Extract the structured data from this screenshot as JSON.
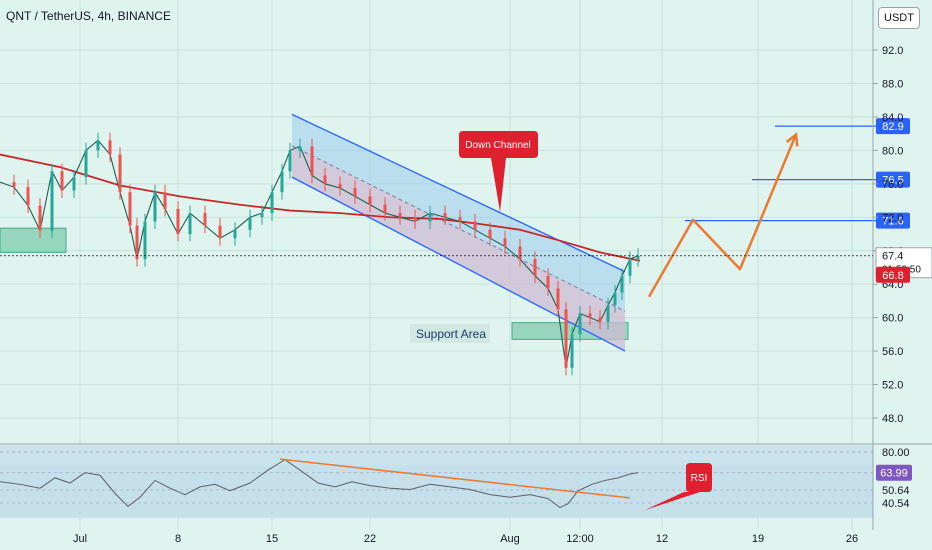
{
  "header": {
    "title": "QNT / TetherUS, 4h, BINANCE",
    "currency": "USDT"
  },
  "chart_data": [
    {
      "type": "line",
      "title": "QNT / TetherUS, 4h, BINANCE",
      "x_labels": [
        "Jul",
        "8",
        "15",
        "22",
        "Aug",
        "12:00",
        "12",
        "19",
        "26"
      ],
      "price_ticks": [
        "92.0",
        "88.0",
        "84.0",
        "80.0",
        "76.0",
        "72.0",
        "68.0",
        "64.0",
        "60.0",
        "56.0",
        "52.0",
        "48.0"
      ],
      "ylim": [
        44.5,
        95.5
      ],
      "price_series": [
        {
          "x": 0,
          "y": 76.2
        },
        {
          "x": 14,
          "y": 75.6
        },
        {
          "x": 28,
          "y": 73.4
        },
        {
          "x": 40,
          "y": 70.4
        },
        {
          "x": 52,
          "y": 77.5
        },
        {
          "x": 62,
          "y": 75.2
        },
        {
          "x": 74,
          "y": 76.8
        },
        {
          "x": 86,
          "y": 80.0
        },
        {
          "x": 98,
          "y": 81.2
        },
        {
          "x": 110,
          "y": 79.5
        },
        {
          "x": 120,
          "y": 75.0
        },
        {
          "x": 130,
          "y": 71.0
        },
        {
          "x": 137,
          "y": 67.0
        },
        {
          "x": 145,
          "y": 71.5
        },
        {
          "x": 155,
          "y": 75.0
        },
        {
          "x": 165,
          "y": 73.0
        },
        {
          "x": 178,
          "y": 70.0
        },
        {
          "x": 190,
          "y": 72.5
        },
        {
          "x": 205,
          "y": 71.0
        },
        {
          "x": 220,
          "y": 69.5
        },
        {
          "x": 235,
          "y": 70.5
        },
        {
          "x": 250,
          "y": 72.0
        },
        {
          "x": 262,
          "y": 72.5
        },
        {
          "x": 272,
          "y": 75.0
        },
        {
          "x": 282,
          "y": 77.5
        },
        {
          "x": 290,
          "y": 80.0
        },
        {
          "x": 300,
          "y": 80.5
        },
        {
          "x": 312,
          "y": 77.0
        },
        {
          "x": 325,
          "y": 76.0
        },
        {
          "x": 340,
          "y": 75.5
        },
        {
          "x": 355,
          "y": 74.5
        },
        {
          "x": 370,
          "y": 73.5
        },
        {
          "x": 385,
          "y": 72.5
        },
        {
          "x": 400,
          "y": 72.0
        },
        {
          "x": 415,
          "y": 71.5
        },
        {
          "x": 430,
          "y": 72.5
        },
        {
          "x": 445,
          "y": 72.0
        },
        {
          "x": 460,
          "y": 71.5
        },
        {
          "x": 475,
          "y": 70.5
        },
        {
          "x": 490,
          "y": 69.5
        },
        {
          "x": 505,
          "y": 68.5
        },
        {
          "x": 520,
          "y": 67.0
        },
        {
          "x": 535,
          "y": 65.0
        },
        {
          "x": 548,
          "y": 63.5
        },
        {
          "x": 558,
          "y": 61.0
        },
        {
          "x": 566,
          "y": 54.0
        },
        {
          "x": 572,
          "y": 58.0
        },
        {
          "x": 580,
          "y": 60.5
        },
        {
          "x": 590,
          "y": 60.0
        },
        {
          "x": 600,
          "y": 59.5
        },
        {
          "x": 608,
          "y": 61.5
        },
        {
          "x": 615,
          "y": 63.0
        },
        {
          "x": 622,
          "y": 65.0
        },
        {
          "x": 630,
          "y": 67.0
        },
        {
          "x": 638,
          "y": 67.4
        }
      ],
      "ma_series": [
        {
          "x": 0,
          "y": 79.5
        },
        {
          "x": 60,
          "y": 78.0
        },
        {
          "x": 120,
          "y": 75.8
        },
        {
          "x": 180,
          "y": 74.5
        },
        {
          "x": 240,
          "y": 73.5
        },
        {
          "x": 290,
          "y": 72.8
        },
        {
          "x": 340,
          "y": 72.5
        },
        {
          "x": 390,
          "y": 72.0
        },
        {
          "x": 440,
          "y": 71.8
        },
        {
          "x": 480,
          "y": 71.2
        },
        {
          "x": 520,
          "y": 70.5
        },
        {
          "x": 560,
          "y": 69.2
        },
        {
          "x": 600,
          "y": 67.8
        },
        {
          "x": 640,
          "y": 66.8
        }
      ],
      "channel": {
        "label": "Down Channel",
        "upper": [
          {
            "x": 292,
            "y": 84.3
          },
          {
            "x": 625,
            "y": 65.5
          }
        ],
        "lower": [
          {
            "x": 292,
            "y": 76.8
          },
          {
            "x": 625,
            "y": 56.0
          }
        ]
      },
      "support_zones": [
        {
          "label": "Support Area",
          "x0": 512,
          "x1": 628,
          "y0": 57.4,
          "y1": 59.4
        },
        {
          "label": "",
          "x0": 0,
          "x1": 66,
          "y0": 67.8,
          "y1": 70.7
        }
      ],
      "target_levels": [
        "82.9",
        "76.5",
        "71.6"
      ],
      "target_level_values": [
        82.9,
        76.5,
        71.6
      ],
      "target_level_spans": [
        [
          775,
          878
        ],
        [
          752,
          878
        ],
        [
          685,
          878
        ]
      ],
      "projection_path": [
        {
          "x": 649,
          "y": 62.5
        },
        {
          "x": 693,
          "y": 71.7
        },
        {
          "x": 740,
          "y": 65.8
        },
        {
          "x": 796,
          "y": 81.9
        }
      ],
      "price_labels": [
        {
          "text": "67.4",
          "value": 67.4,
          "sub": "01:59:50",
          "color": "#131722",
          "bg": "#ffffff"
        },
        {
          "text": "66.8",
          "value": 66.8,
          "sub": "",
          "color": "#ffffff",
          "bg": "#e0202e"
        }
      ]
    },
    {
      "type": "line",
      "title": "RSI",
      "rsi_labels": [
        "80.00",
        "63.99",
        "50.64",
        "40.54"
      ],
      "ylim": [
        20,
        85
      ],
      "rsi_series": [
        {
          "x": 0,
          "y": 57
        },
        {
          "x": 20,
          "y": 55
        },
        {
          "x": 40,
          "y": 52
        },
        {
          "x": 55,
          "y": 60
        },
        {
          "x": 70,
          "y": 56
        },
        {
          "x": 85,
          "y": 64
        },
        {
          "x": 100,
          "y": 62
        },
        {
          "x": 115,
          "y": 48
        },
        {
          "x": 128,
          "y": 38
        },
        {
          "x": 140,
          "y": 45
        },
        {
          "x": 155,
          "y": 58
        },
        {
          "x": 170,
          "y": 52
        },
        {
          "x": 185,
          "y": 47
        },
        {
          "x": 200,
          "y": 53
        },
        {
          "x": 215,
          "y": 55
        },
        {
          "x": 230,
          "y": 50
        },
        {
          "x": 250,
          "y": 56
        },
        {
          "x": 268,
          "y": 66
        },
        {
          "x": 285,
          "y": 74
        },
        {
          "x": 300,
          "y": 66
        },
        {
          "x": 318,
          "y": 56
        },
        {
          "x": 335,
          "y": 53
        },
        {
          "x": 352,
          "y": 57
        },
        {
          "x": 370,
          "y": 54
        },
        {
          "x": 390,
          "y": 52
        },
        {
          "x": 410,
          "y": 51
        },
        {
          "x": 430,
          "y": 55
        },
        {
          "x": 450,
          "y": 53
        },
        {
          "x": 470,
          "y": 51
        },
        {
          "x": 490,
          "y": 47
        },
        {
          "x": 510,
          "y": 45
        },
        {
          "x": 530,
          "y": 47
        },
        {
          "x": 548,
          "y": 44
        },
        {
          "x": 560,
          "y": 37
        },
        {
          "x": 568,
          "y": 40
        },
        {
          "x": 578,
          "y": 50
        },
        {
          "x": 592,
          "y": 55
        },
        {
          "x": 605,
          "y": 58
        },
        {
          "x": 618,
          "y": 60
        },
        {
          "x": 630,
          "y": 63
        },
        {
          "x": 638,
          "y": 64
        }
      ],
      "trendline": [
        {
          "x": 280,
          "y": 74.5
        },
        {
          "x": 630,
          "y": 44.5
        }
      ],
      "annotation": "RSI"
    }
  ],
  "colors": {
    "background": "#dff4ee",
    "accent_blue": "#2962ff",
    "ma_red": "#c62828",
    "orange": "#ec7a33",
    "support_green": "#66c2a0",
    "callout_red": "#e0202e",
    "rsi_purple": "#7e57c2"
  }
}
